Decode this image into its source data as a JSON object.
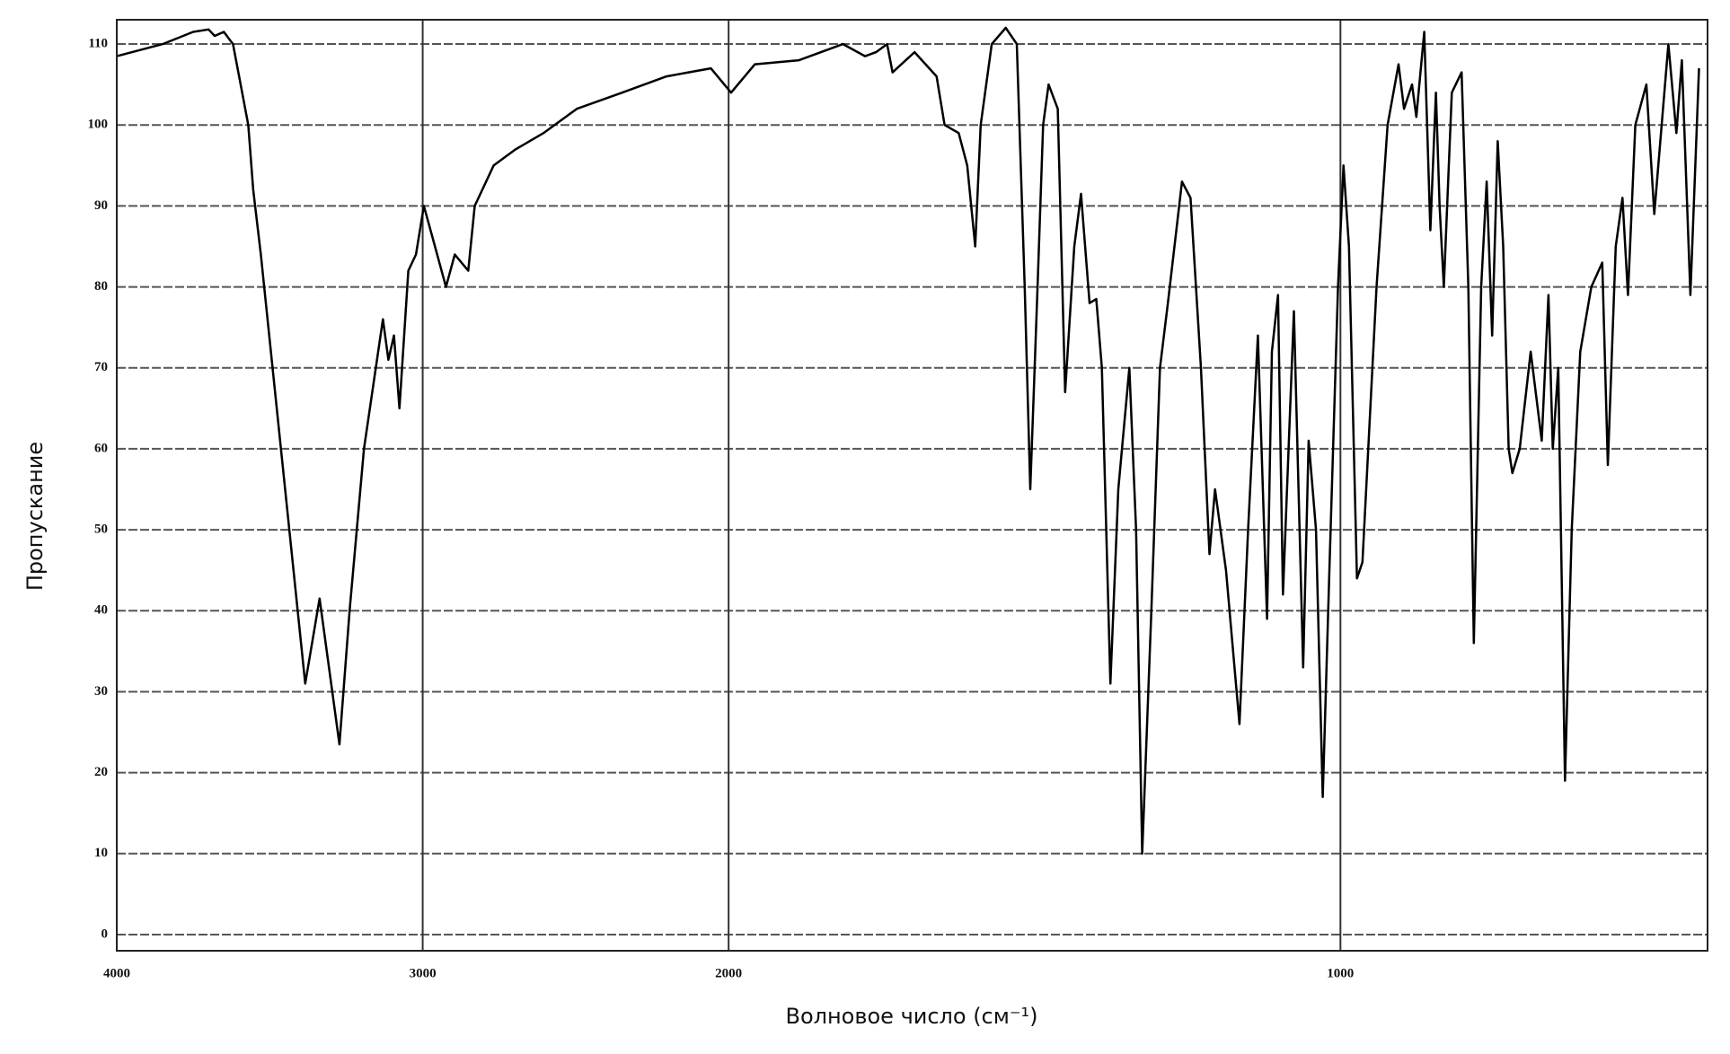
{
  "chart_data": {
    "type": "line",
    "x_label": "Волновое число (см⁻¹)",
    "y_label": "Пропускание",
    "xlim": [
      4000,
      400
    ],
    "x_scale_break": {
      "at": 2000,
      "expansion": 2
    },
    "xticks": [
      4000,
      3000,
      2000,
      1000
    ],
    "ylim": [
      -2,
      113
    ],
    "yticks": [
      0,
      10,
      20,
      30,
      40,
      50,
      60,
      70,
      80,
      90,
      100,
      110
    ],
    "grid": true,
    "series": [
      {
        "color": "#000000",
        "x": [
          4000,
          3850,
          3750,
          3700,
          3680,
          3650,
          3620,
          3600,
          3570,
          3554,
          3529,
          3384,
          3337,
          3272,
          3239,
          3192,
          3130,
          3112,
          3094,
          3076,
          3047,
          3022,
          2996,
          2967,
          2924,
          2895,
          2851,
          2830,
          2768,
          2696,
          2605,
          2496,
          2348,
          2203,
          2058,
          1996,
          1957,
          1885,
          1813,
          1777,
          1759,
          1741,
          1732,
          1696,
          1660,
          1647,
          1624,
          1610,
          1597,
          1588,
          1570,
          1547,
          1529,
          1516,
          1507,
          1495,
          1486,
          1477,
          1462,
          1450,
          1435,
          1424,
          1410,
          1399,
          1390,
          1376,
          1363,
          1345,
          1334,
          1324,
          1309,
          1295,
          1282,
          1259,
          1245,
          1228,
          1214,
          1205,
          1187,
          1165,
          1151,
          1135,
          1120,
          1112,
          1102,
          1094,
          1076,
          1061,
          1052,
          1040,
          1029,
          1018,
          1004,
          995,
          986,
          973,
          964,
          941,
          923,
          905,
          896,
          883,
          876,
          863,
          853,
          844,
          838,
          831,
          818,
          802,
          791,
          782,
          770,
          761,
          752,
          743,
          734,
          725,
          719,
          707,
          689,
          671,
          660,
          653,
          644,
          633,
          622,
          608,
          590,
          572,
          563,
          550,
          539,
          530,
          518,
          500,
          487,
          464,
          451,
          442,
          428,
          414
        ],
        "values": [
          108.5,
          110,
          111.5,
          111.8,
          111,
          111.5,
          110,
          106,
          100,
          92,
          84,
          31,
          41.5,
          23.5,
          40,
          60,
          76,
          71,
          74,
          65,
          82,
          84,
          90,
          86,
          80,
          84,
          82,
          90,
          95,
          97,
          99,
          102,
          104,
          106,
          107,
          104,
          107.5,
          108,
          110,
          108.5,
          109,
          110,
          106.5,
          109,
          106,
          100,
          99,
          95,
          85,
          100,
          110,
          112,
          110,
          80,
          55,
          80,
          100,
          105,
          102,
          67,
          85,
          91.5,
          78,
          78.5,
          70,
          31,
          55,
          70,
          50,
          10,
          40,
          70,
          78,
          93,
          91,
          70,
          47,
          55,
          45,
          26,
          50,
          74,
          39,
          72,
          79,
          42,
          77,
          33,
          61,
          50,
          17,
          45,
          80,
          95,
          85,
          44,
          46,
          80,
          100,
          107.5,
          102,
          105,
          101,
          111.5,
          87,
          104,
          90,
          80,
          104,
          106.5,
          80,
          36,
          80,
          93,
          74,
          98,
          85,
          60,
          57,
          60,
          72,
          61,
          79,
          60,
          70,
          19,
          50,
          72,
          80,
          83,
          58,
          85,
          91,
          79,
          100,
          105,
          89,
          110,
          99,
          108,
          79,
          107
        ]
      }
    ]
  }
}
